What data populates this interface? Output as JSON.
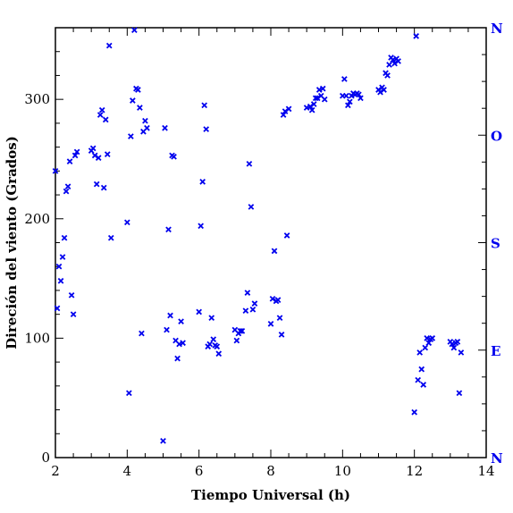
{
  "colors": {
    "data": "#0000ee",
    "axis": "#000000",
    "compass": "#0000ee"
  },
  "chart_data": {
    "type": "scatter",
    "marker": "x-cross",
    "xlabel": "Tiempo Universal (h)",
    "ylabel": "Direción del viento (Grados)",
    "xlim": [
      2,
      14
    ],
    "ylim": [
      0,
      360
    ],
    "xticks": [
      2,
      4,
      6,
      8,
      10,
      12,
      14
    ],
    "yticks": [
      0,
      100,
      200,
      300
    ],
    "right_axis": {
      "labels": [
        {
          "text": "N",
          "value": 360
        },
        {
          "text": "O",
          "value": 270
        },
        {
          "text": "S",
          "value": 180
        },
        {
          "text": "E",
          "value": 90
        },
        {
          "text": "N",
          "value": 0
        }
      ]
    },
    "series": [
      {
        "points": [
          [
            2.0,
            240
          ],
          [
            2.05,
            125
          ],
          [
            2.1,
            160
          ],
          [
            2.15,
            148
          ],
          [
            2.2,
            168
          ],
          [
            2.25,
            184
          ],
          [
            2.3,
            223
          ],
          [
            2.35,
            227
          ],
          [
            2.4,
            248
          ],
          [
            2.45,
            136
          ],
          [
            2.5,
            120
          ],
          [
            2.55,
            253
          ],
          [
            2.6,
            256
          ],
          [
            3.0,
            257
          ],
          [
            3.05,
            259
          ],
          [
            3.1,
            253
          ],
          [
            3.15,
            229
          ],
          [
            3.2,
            251
          ],
          [
            3.25,
            287
          ],
          [
            3.3,
            291
          ],
          [
            3.35,
            226
          ],
          [
            3.4,
            283
          ],
          [
            3.45,
            254
          ],
          [
            3.5,
            345
          ],
          [
            3.55,
            184
          ],
          [
            4.0,
            197
          ],
          [
            4.05,
            54
          ],
          [
            4.1,
            269
          ],
          [
            4.15,
            299
          ],
          [
            4.2,
            358
          ],
          [
            4.25,
            309
          ],
          [
            4.3,
            308
          ],
          [
            4.35,
            293
          ],
          [
            4.4,
            104
          ],
          [
            4.45,
            273
          ],
          [
            4.5,
            282
          ],
          [
            4.55,
            276
          ],
          [
            5.0,
            14
          ],
          [
            5.05,
            276
          ],
          [
            5.1,
            107
          ],
          [
            5.15,
            191
          ],
          [
            5.2,
            119
          ],
          [
            5.25,
            253
          ],
          [
            5.3,
            252
          ],
          [
            5.35,
            98
          ],
          [
            5.4,
            83
          ],
          [
            5.45,
            95
          ],
          [
            5.5,
            114
          ],
          [
            5.55,
            96
          ],
          [
            6.0,
            122
          ],
          [
            6.05,
            194
          ],
          [
            6.1,
            231
          ],
          [
            6.15,
            295
          ],
          [
            6.2,
            275
          ],
          [
            6.25,
            93
          ],
          [
            6.3,
            95
          ],
          [
            6.35,
            117
          ],
          [
            6.4,
            99
          ],
          [
            6.45,
            94
          ],
          [
            6.5,
            93
          ],
          [
            6.55,
            87
          ],
          [
            7.0,
            107
          ],
          [
            7.05,
            98
          ],
          [
            7.1,
            104
          ],
          [
            7.15,
            106
          ],
          [
            7.2,
            106
          ],
          [
            7.3,
            123
          ],
          [
            7.35,
            138
          ],
          [
            7.4,
            246
          ],
          [
            7.45,
            210
          ],
          [
            7.5,
            124
          ],
          [
            7.55,
            129
          ],
          [
            8.0,
            112
          ],
          [
            8.05,
            133
          ],
          [
            8.1,
            173
          ],
          [
            8.15,
            131
          ],
          [
            8.2,
            132
          ],
          [
            8.25,
            117
          ],
          [
            8.3,
            103
          ],
          [
            8.35,
            287
          ],
          [
            8.4,
            290
          ],
          [
            8.45,
            186
          ],
          [
            8.5,
            292
          ],
          [
            9.0,
            293
          ],
          [
            9.1,
            294
          ],
          [
            9.15,
            291
          ],
          [
            9.2,
            296
          ],
          [
            9.25,
            301
          ],
          [
            9.3,
            301
          ],
          [
            9.35,
            308
          ],
          [
            9.4,
            303
          ],
          [
            9.45,
            309
          ],
          [
            9.5,
            300
          ],
          [
            10.0,
            303
          ],
          [
            10.05,
            317
          ],
          [
            10.1,
            303
          ],
          [
            10.15,
            295
          ],
          [
            10.2,
            298
          ],
          [
            10.25,
            303
          ],
          [
            10.3,
            305
          ],
          [
            10.35,
            304
          ],
          [
            10.4,
            305
          ],
          [
            10.45,
            304
          ],
          [
            10.5,
            301
          ],
          [
            11.0,
            308
          ],
          [
            11.05,
            306
          ],
          [
            11.1,
            310
          ],
          [
            11.15,
            308
          ],
          [
            11.2,
            322
          ],
          [
            11.25,
            320
          ],
          [
            11.3,
            329
          ],
          [
            11.35,
            335
          ],
          [
            11.4,
            333
          ],
          [
            11.45,
            330
          ],
          [
            11.5,
            334
          ],
          [
            11.55,
            332
          ],
          [
            12.0,
            38
          ],
          [
            12.05,
            353
          ],
          [
            12.1,
            65
          ],
          [
            12.15,
            88
          ],
          [
            12.2,
            74
          ],
          [
            12.25,
            61
          ],
          [
            12.3,
            92
          ],
          [
            12.35,
            100
          ],
          [
            12.4,
            96
          ],
          [
            12.45,
            99
          ],
          [
            12.5,
            100
          ],
          [
            13.0,
            97
          ],
          [
            13.05,
            95
          ],
          [
            13.1,
            92
          ],
          [
            13.15,
            96
          ],
          [
            13.2,
            97
          ],
          [
            13.25,
            54
          ],
          [
            13.3,
            88
          ]
        ]
      }
    ]
  }
}
